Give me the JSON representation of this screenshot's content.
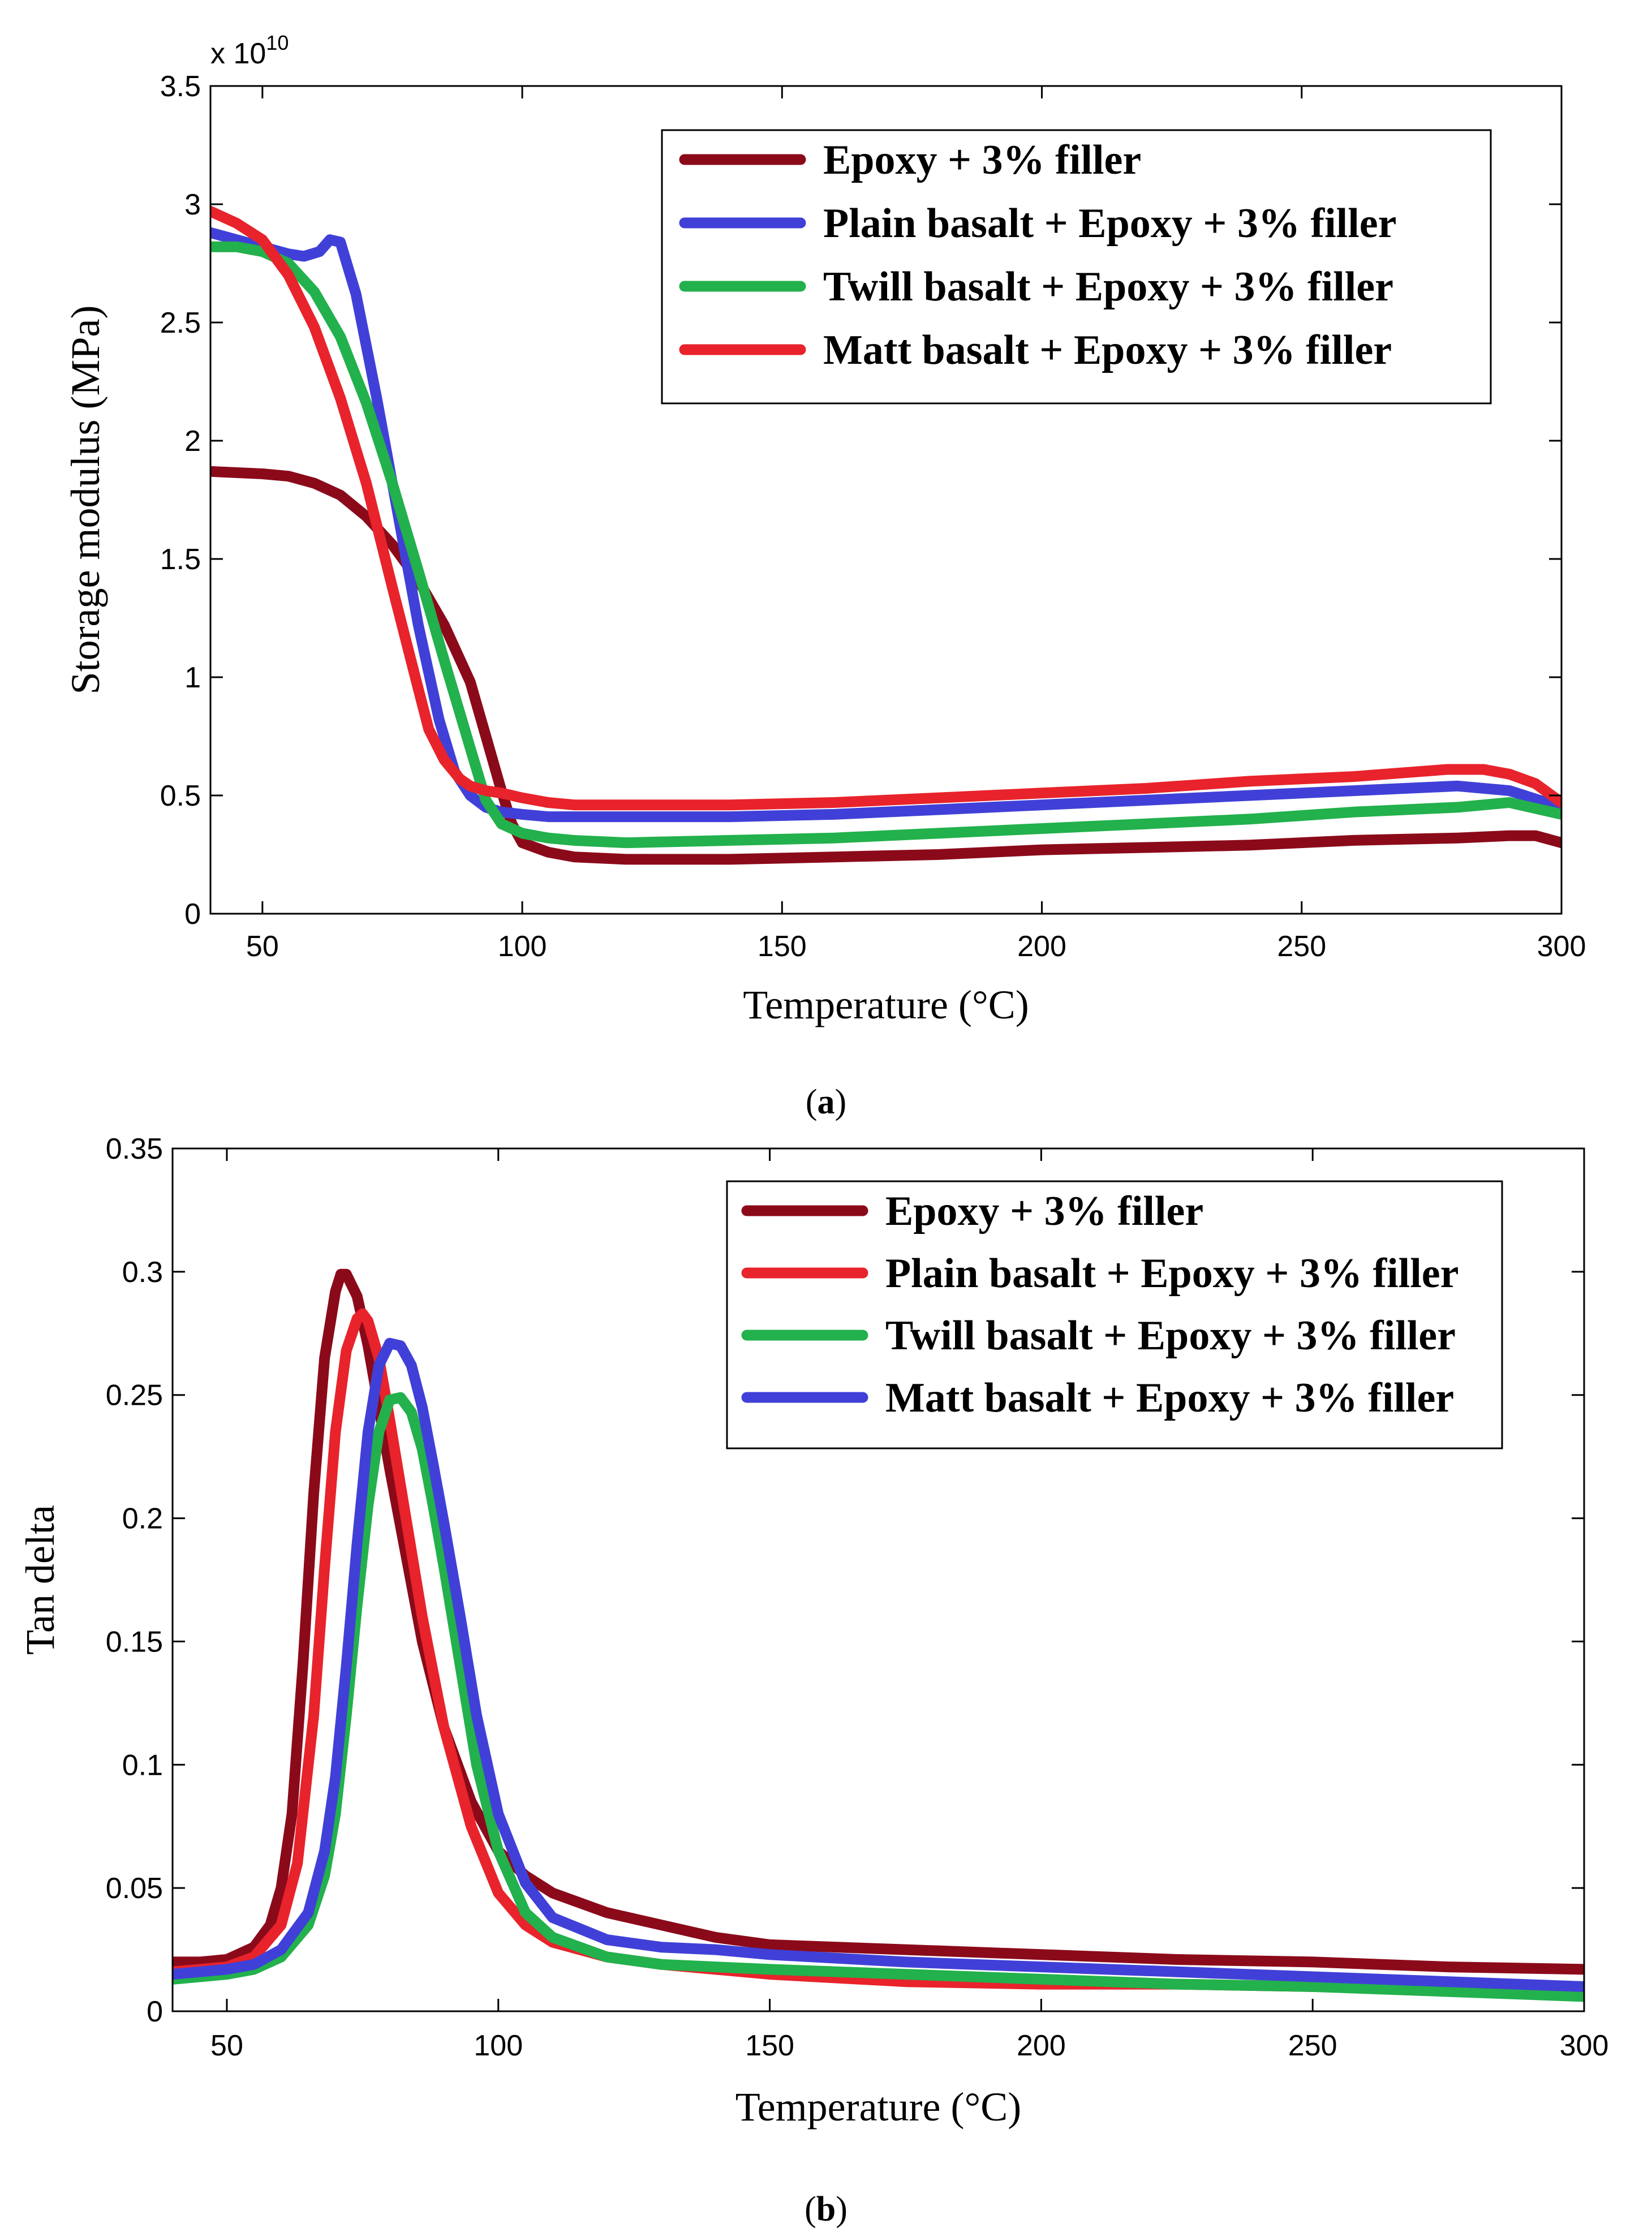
{
  "chart_data": [
    {
      "type": "line",
      "caption_letter": "a",
      "xlabel": "Temperature (°C)",
      "ylabel": "Storage modulus (MPa)",
      "y_multiplier": "x 10",
      "y_multiplier_exponent": "10",
      "xlim": [
        40,
        300
      ],
      "ylim": [
        0,
        3.5
      ],
      "xticks": [
        50,
        100,
        150,
        200,
        250,
        300
      ],
      "xtick_labels": [
        "50",
        "100",
        "150",
        "200",
        "250",
        "300"
      ],
      "yticks": [
        0,
        0.5,
        1,
        1.5,
        2,
        2.5,
        3,
        3.5
      ],
      "ytick_labels": [
        "0",
        "0.5",
        "1",
        "1.5",
        "2",
        "2.5",
        "3",
        "3.5"
      ],
      "legend_position": "top-right",
      "series": [
        {
          "name": "Epoxy + 3% filler",
          "color": "#8B0A1A",
          "x": [
            40,
            50,
            55,
            60,
            65,
            70,
            75,
            80,
            85,
            90,
            93,
            96,
            98,
            100,
            105,
            110,
            120,
            140,
            160,
            180,
            200,
            220,
            240,
            260,
            280,
            290,
            295,
            300
          ],
          "y": [
            1.87,
            1.86,
            1.85,
            1.82,
            1.77,
            1.68,
            1.56,
            1.41,
            1.22,
            0.98,
            0.75,
            0.52,
            0.38,
            0.3,
            0.26,
            0.24,
            0.23,
            0.23,
            0.24,
            0.25,
            0.27,
            0.28,
            0.29,
            0.31,
            0.32,
            0.33,
            0.33,
            0.3
          ]
        },
        {
          "name": "Plain basalt + Epoxy + 3% filler",
          "color": "#4040D8",
          "x": [
            40,
            45,
            50,
            55,
            58,
            61,
            63,
            65,
            68,
            72,
            76,
            80,
            84,
            87,
            90,
            93,
            96,
            100,
            105,
            110,
            120,
            140,
            160,
            180,
            200,
            220,
            240,
            260,
            280,
            290,
            300
          ],
          "y": [
            2.88,
            2.85,
            2.82,
            2.79,
            2.78,
            2.8,
            2.85,
            2.84,
            2.62,
            2.18,
            1.7,
            1.22,
            0.82,
            0.6,
            0.5,
            0.45,
            0.43,
            0.42,
            0.41,
            0.41,
            0.41,
            0.41,
            0.42,
            0.44,
            0.46,
            0.48,
            0.5,
            0.52,
            0.54,
            0.52,
            0.45
          ]
        },
        {
          "name": "Twill basalt + Epoxy + 3% filler",
          "color": "#22B14C",
          "x": [
            40,
            45,
            50,
            55,
            60,
            65,
            70,
            75,
            80,
            85,
            90,
            93,
            96,
            100,
            105,
            110,
            120,
            140,
            160,
            180,
            200,
            220,
            240,
            260,
            280,
            290,
            300
          ],
          "y": [
            2.82,
            2.82,
            2.8,
            2.75,
            2.63,
            2.44,
            2.16,
            1.82,
            1.45,
            1.07,
            0.7,
            0.48,
            0.38,
            0.34,
            0.32,
            0.31,
            0.3,
            0.31,
            0.32,
            0.34,
            0.36,
            0.38,
            0.4,
            0.43,
            0.45,
            0.47,
            0.42
          ]
        },
        {
          "name": "Matt basalt + Epoxy + 3% filler",
          "color": "#E8232B",
          "x": [
            40,
            45,
            50,
            55,
            60,
            65,
            70,
            75,
            80,
            82,
            85,
            88,
            90,
            93,
            96,
            100,
            105,
            110,
            120,
            140,
            160,
            180,
            200,
            220,
            240,
            260,
            278,
            285,
            290,
            295,
            300
          ],
          "y": [
            2.97,
            2.92,
            2.85,
            2.7,
            2.48,
            2.18,
            1.82,
            1.38,
            0.95,
            0.78,
            0.65,
            0.57,
            0.54,
            0.52,
            0.51,
            0.49,
            0.47,
            0.46,
            0.46,
            0.46,
            0.47,
            0.49,
            0.51,
            0.53,
            0.56,
            0.58,
            0.61,
            0.61,
            0.59,
            0.55,
            0.47
          ]
        }
      ]
    },
    {
      "type": "line",
      "caption_letter": "b",
      "xlabel": "Temperature (°C)",
      "ylabel": "Tan delta",
      "xlim": [
        40,
        300
      ],
      "ylim": [
        0,
        0.35
      ],
      "xticks": [
        50,
        100,
        150,
        200,
        250,
        300
      ],
      "xtick_labels": [
        "50",
        "100",
        "150",
        "200",
        "250",
        "300"
      ],
      "yticks": [
        0,
        0.05,
        0.1,
        0.15,
        0.2,
        0.25,
        0.3,
        0.35
      ],
      "ytick_labels": [
        "0",
        "0.05",
        "0.1",
        "0.15",
        "0.2",
        "0.25",
        "0.3",
        "0.35"
      ],
      "legend_position": "top-right",
      "series": [
        {
          "name": "Epoxy + 3% filler",
          "color": "#8B0A1A",
          "x": [
            40,
            45,
            50,
            55,
            58,
            60,
            62,
            64,
            66,
            68,
            70,
            71,
            72,
            74,
            76,
            78,
            80,
            83,
            86,
            90,
            95,
            100,
            105,
            110,
            120,
            130,
            140,
            150,
            175,
            200,
            225,
            250,
            275,
            300
          ],
          "y": [
            0.02,
            0.02,
            0.021,
            0.026,
            0.035,
            0.05,
            0.08,
            0.14,
            0.21,
            0.265,
            0.292,
            0.299,
            0.299,
            0.29,
            0.27,
            0.245,
            0.22,
            0.185,
            0.15,
            0.115,
            0.085,
            0.065,
            0.055,
            0.048,
            0.04,
            0.035,
            0.03,
            0.027,
            0.025,
            0.023,
            0.021,
            0.02,
            0.018,
            0.017
          ]
        },
        {
          "name": "Plain basalt + Epoxy + 3% filler",
          "color": "#E8232B",
          "x": [
            40,
            45,
            50,
            55,
            60,
            63,
            66,
            68,
            70,
            72,
            74,
            75,
            76,
            78,
            80,
            83,
            86,
            90,
            95,
            100,
            105,
            110,
            120,
            130,
            140,
            150,
            175,
            200,
            225,
            250,
            275,
            300
          ],
          "y": [
            0.016,
            0.017,
            0.018,
            0.022,
            0.035,
            0.06,
            0.12,
            0.18,
            0.235,
            0.268,
            0.281,
            0.283,
            0.28,
            0.265,
            0.24,
            0.2,
            0.16,
            0.115,
            0.075,
            0.048,
            0.035,
            0.028,
            0.022,
            0.019,
            0.017,
            0.015,
            0.012,
            0.011,
            0.011,
            0.01,
            0.01,
            0.009
          ]
        },
        {
          "name": "Twill basalt + Epoxy + 3% filler",
          "color": "#22B14C",
          "x": [
            40,
            45,
            50,
            55,
            60,
            65,
            68,
            70,
            72,
            74,
            76,
            78,
            80,
            82,
            84,
            86,
            88,
            90,
            93,
            96,
            100,
            105,
            110,
            120,
            130,
            140,
            150,
            175,
            200,
            225,
            250,
            275,
            300
          ],
          "y": [
            0.013,
            0.014,
            0.015,
            0.017,
            0.022,
            0.035,
            0.055,
            0.08,
            0.12,
            0.165,
            0.205,
            0.235,
            0.248,
            0.249,
            0.243,
            0.228,
            0.205,
            0.18,
            0.14,
            0.1,
            0.065,
            0.04,
            0.03,
            0.022,
            0.019,
            0.018,
            0.017,
            0.015,
            0.013,
            0.011,
            0.01,
            0.008,
            0.006
          ]
        },
        {
          "name": "Matt basalt + Epoxy + 3% filler",
          "color": "#4040D8",
          "x": [
            40,
            45,
            50,
            55,
            60,
            65,
            68,
            70,
            72,
            74,
            76,
            78,
            80,
            82,
            84,
            86,
            88,
            90,
            93,
            96,
            100,
            105,
            110,
            120,
            130,
            140,
            150,
            175,
            200,
            225,
            250,
            275,
            300
          ],
          "y": [
            0.015,
            0.016,
            0.017,
            0.019,
            0.025,
            0.04,
            0.065,
            0.095,
            0.14,
            0.19,
            0.235,
            0.262,
            0.271,
            0.27,
            0.262,
            0.245,
            0.222,
            0.198,
            0.16,
            0.12,
            0.08,
            0.052,
            0.038,
            0.029,
            0.026,
            0.025,
            0.023,
            0.02,
            0.018,
            0.016,
            0.014,
            0.012,
            0.01
          ]
        }
      ]
    }
  ]
}
